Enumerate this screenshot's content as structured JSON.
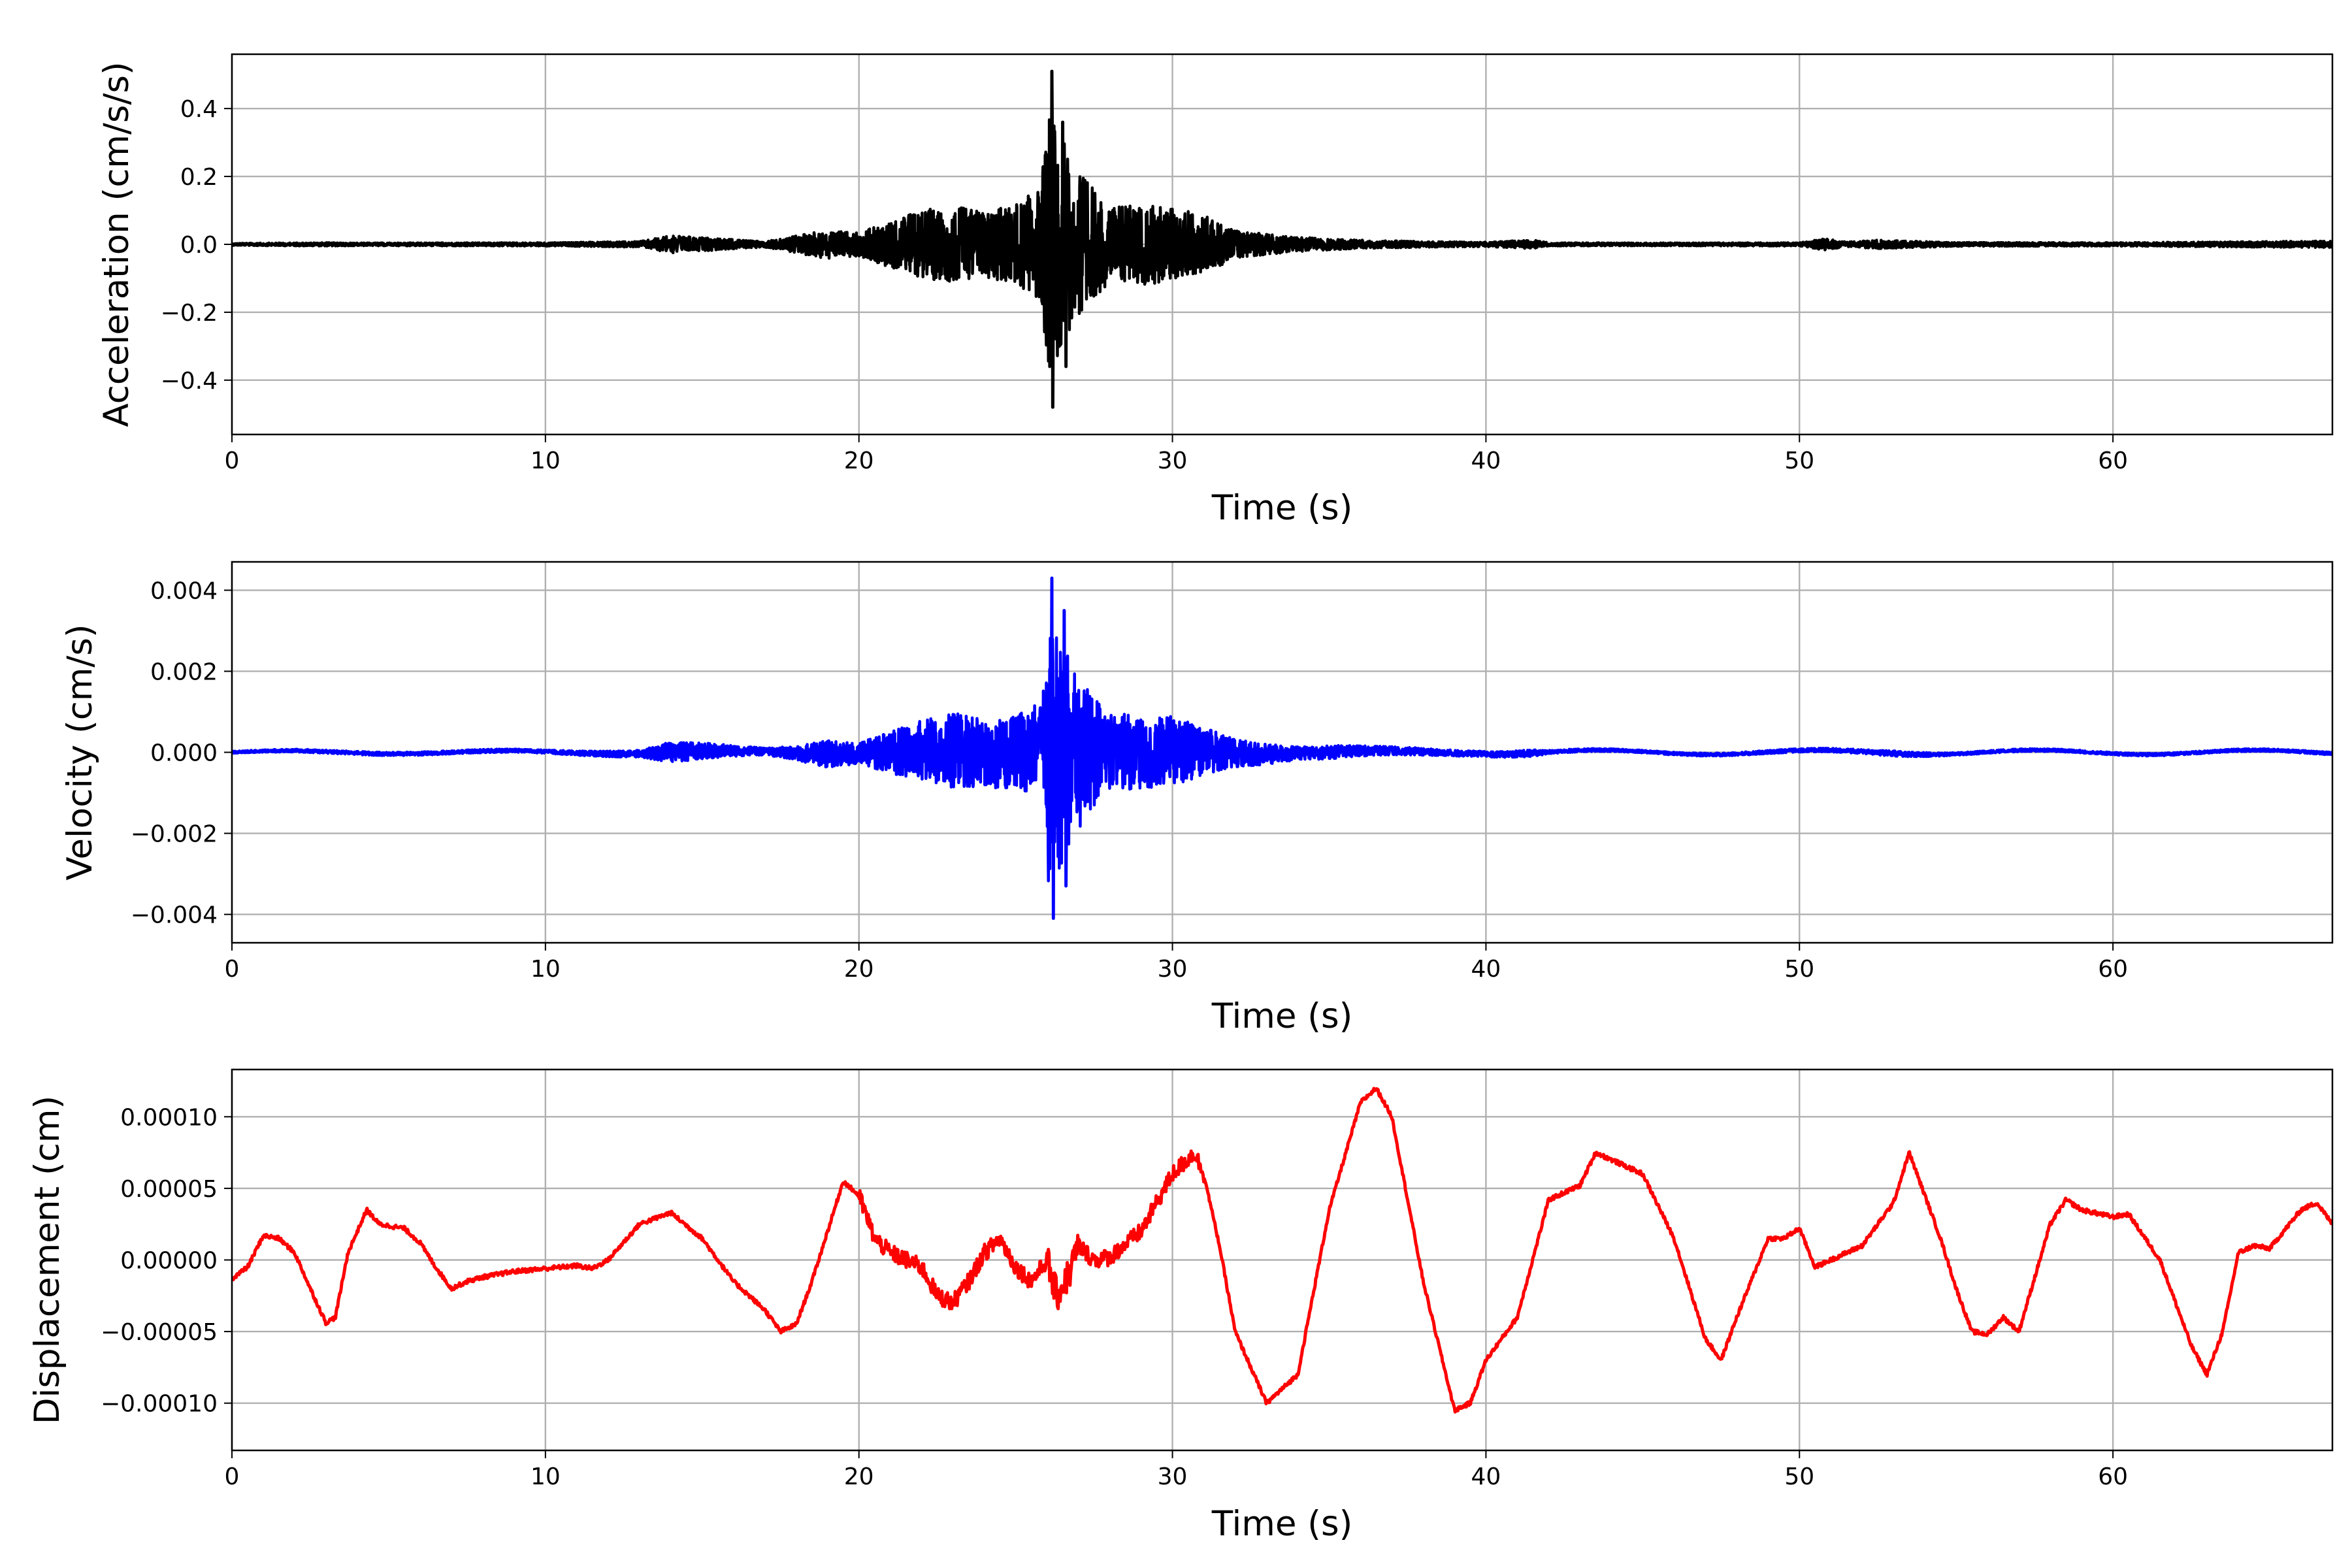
{
  "chart_data": [
    {
      "type": "line",
      "title": "",
      "xlabel": "Time (s)",
      "ylabel": "Acceleration (cm/s/s)",
      "xlim": [
        0,
        67
      ],
      "ylim": [
        -0.56,
        0.56
      ],
      "xticks": [
        0,
        10,
        20,
        30,
        40,
        50,
        60
      ],
      "xtick_labels": [
        "0",
        "10",
        "20",
        "30",
        "40",
        "50",
        "60"
      ],
      "yticks": [
        -0.4,
        -0.2,
        0.0,
        0.2,
        0.4
      ],
      "ytick_labels": [
        "−0.4",
        "−0.2",
        "0.0",
        "0.2",
        "0.4"
      ],
      "grid": true,
      "color": "#000000",
      "envelope": {
        "t": [
          0,
          3,
          4,
          10,
          13,
          14,
          17,
          18,
          19,
          20,
          21,
          22,
          23,
          24,
          25,
          25.8,
          26.1,
          26.3,
          26.5,
          27,
          28,
          29,
          30,
          31,
          32,
          33,
          34,
          35,
          36,
          38,
          40,
          41.5,
          42,
          45,
          50,
          50.8,
          51.5,
          52.5,
          55,
          60,
          67
        ],
        "amp": [
          0.004,
          0.006,
          0.005,
          0.006,
          0.01,
          0.03,
          0.01,
          0.03,
          0.05,
          0.04,
          0.08,
          0.12,
          0.13,
          0.12,
          0.14,
          0.2,
          0.5,
          0.4,
          0.36,
          0.25,
          0.13,
          0.14,
          0.13,
          0.1,
          0.05,
          0.035,
          0.025,
          0.02,
          0.015,
          0.01,
          0.008,
          0.015,
          0.006,
          0.005,
          0.006,
          0.02,
          0.008,
          0.015,
          0.007,
          0.006,
          0.012
        ]
      },
      "peaks": [
        {
          "x": 26.15,
          "y": 0.51
        },
        {
          "x": 26.18,
          "y": -0.48
        },
        {
          "x": 26.5,
          "y": 0.36
        },
        {
          "x": 26.6,
          "y": -0.36
        }
      ]
    },
    {
      "type": "line",
      "title": "",
      "xlabel": "Time (s)",
      "ylabel": "Velocity (cm/s)",
      "xlim": [
        0,
        67
      ],
      "ylim": [
        -0.0047,
        0.0047
      ],
      "xticks": [
        0,
        10,
        20,
        30,
        40,
        50,
        60
      ],
      "xtick_labels": [
        "0",
        "10",
        "20",
        "30",
        "40",
        "50",
        "60"
      ],
      "yticks": [
        -0.004,
        -0.002,
        0.0,
        0.002,
        0.004
      ],
      "ytick_labels": [
        "−0.004",
        "−0.002",
        "0.000",
        "0.002",
        "0.004"
      ],
      "grid": true,
      "color": "#0000ff",
      "envelope": {
        "t": [
          0,
          3,
          4,
          10,
          13,
          14,
          17,
          18,
          19,
          20,
          21,
          22,
          23,
          24,
          25,
          25.8,
          26.1,
          26.3,
          26.5,
          27,
          28,
          29,
          30,
          31,
          32,
          33,
          34,
          35,
          36,
          38,
          40,
          41.5,
          42,
          45,
          50,
          52,
          53,
          55,
          60,
          67
        ],
        "amp": [
          3e-05,
          5e-05,
          5e-05,
          5e-05,
          0.0001,
          0.0003,
          0.0001,
          0.0002,
          0.0004,
          0.0003,
          0.0006,
          0.0009,
          0.0011,
          0.001,
          0.0011,
          0.0015,
          0.0042,
          0.0035,
          0.0032,
          0.0022,
          0.0011,
          0.0011,
          0.001,
          0.0007,
          0.0004,
          0.0003,
          0.0002,
          0.0002,
          0.00015,
          0.0001,
          8e-05,
          0.0001,
          5e-05,
          4e-05,
          5e-05,
          6e-05,
          8e-05,
          4e-05,
          4e-05,
          4e-05
        ]
      },
      "peaks": [
        {
          "x": 26.15,
          "y": 0.0043
        },
        {
          "x": 26.2,
          "y": -0.0041
        },
        {
          "x": 26.55,
          "y": 0.0035
        },
        {
          "x": 26.6,
          "y": -0.0033
        }
      ]
    },
    {
      "type": "line",
      "title": "",
      "xlabel": "Time (s)",
      "ylabel": "Displacement (cm)",
      "xlim": [
        0,
        67
      ],
      "ylim": [
        -0.000133,
        0.000133
      ],
      "xticks": [
        0,
        10,
        20,
        30,
        40,
        50,
        60
      ],
      "xtick_labels": [
        "0",
        "10",
        "20",
        "30",
        "40",
        "50",
        "60"
      ],
      "yticks": [
        -0.0001,
        -5e-05,
        0.0,
        5e-05,
        0.0001
      ],
      "ytick_labels": [
        "−0.00010",
        "−0.00005",
        "0.00000",
        "0.00005",
        "0.00010"
      ],
      "grid": true,
      "color": "#ff0000",
      "x": [
        0,
        0.5,
        1,
        1.5,
        2,
        2.5,
        3,
        3.3,
        3.7,
        4.3,
        4.7,
        5.5,
        6,
        6.5,
        7,
        7.5,
        8,
        9,
        10,
        11,
        11.5,
        12,
        13,
        14,
        15,
        16,
        17,
        17.5,
        18,
        18.5,
        19.5,
        20,
        20.5,
        21,
        22,
        22.5,
        23,
        23.5,
        24,
        24.5,
        25,
        25.5,
        26,
        26.3,
        26.7,
        27,
        27.5,
        28,
        29,
        30,
        30.7,
        31,
        31.5,
        32,
        33,
        34,
        35,
        36,
        36.5,
        37,
        38,
        39,
        39.5,
        40,
        41,
        42,
        43,
        43.5,
        45,
        46,
        47,
        47.5,
        48,
        49,
        49.5,
        50,
        50.5,
        51,
        52,
        53,
        53.5,
        54.5,
        55,
        55.5,
        56,
        56.5,
        57,
        58,
        58.5,
        59,
        60,
        60.5,
        61.5,
        62.5,
        63,
        63.5,
        64,
        64.5,
        65,
        66,
        66.5,
        67
      ],
      "y": [
        -1.3e-05,
        -5e-06,
        1.7e-05,
        1.5e-05,
        5e-06,
        -2e-05,
        -4.4e-05,
        -4e-05,
        5e-06,
        3.5e-05,
        2.5e-05,
        2.2e-05,
        1.2e-05,
        -5e-06,
        -2e-05,
        -1.5e-05,
        -1.2e-05,
        -8e-06,
        -6e-06,
        -4e-06,
        -6e-06,
        0.0,
        2.5e-05,
        3.3e-05,
        1.5e-05,
        -1.5e-05,
        -3.5e-05,
        -5e-05,
        -4.5e-05,
        -1.5e-05,
        5.5e-05,
        4.5e-05,
        1.5e-05,
        5e-06,
        -5e-06,
        -2.5e-05,
        -3e-05,
        -1.5e-05,
        5e-06,
        1.5e-05,
        -5e-06,
        -1.5e-05,
        0.0,
        -2.5e-05,
        -1e-05,
        1e-05,
        0.0,
        2e-06,
        2e-05,
        6e-05,
        7.5e-05,
        6e-05,
        1e-05,
        -5e-05,
        -0.0001,
        -8e-05,
        3.5e-05,
        0.00011,
        0.00012,
        0.0001,
        -1.5e-05,
        -0.000105,
        -0.0001,
        -7e-05,
        -4e-05,
        4.2e-05,
        5.2e-05,
        7.5e-05,
        6e-05,
        1.5e-05,
        -5.5e-05,
        -7e-05,
        -4e-05,
        1.5e-05,
        1.5e-05,
        2.2e-05,
        -5e-06,
        0.0,
        1e-05,
        4e-05,
        7.5e-05,
        1.5e-05,
        -2e-05,
        -5e-05,
        -5.2e-05,
        -4e-05,
        -5e-05,
        2.5e-05,
        4.2e-05,
        3.5e-05,
        3e-05,
        3.2e-05,
        0.0,
        -6e-05,
        -8e-05,
        -5e-05,
        5e-06,
        1e-05,
        8e-06,
        3.5e-05,
        4e-05,
        2.5e-05
      ]
    }
  ]
}
